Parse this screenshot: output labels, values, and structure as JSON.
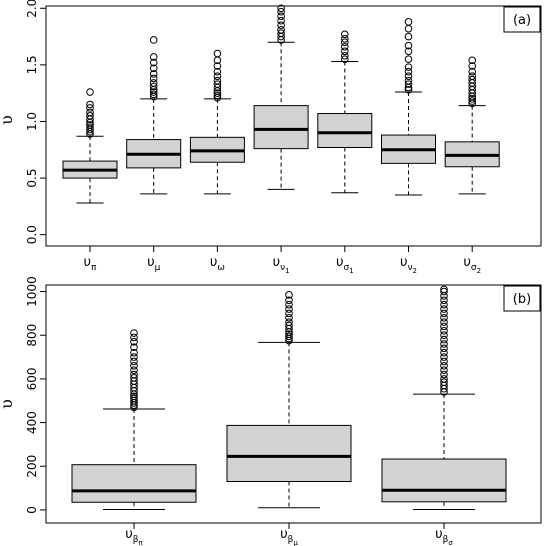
{
  "chart_data": [
    {
      "type": "boxplot",
      "panel_label": "(a)",
      "ylabel": "υ",
      "ylim": [
        0,
        2.0
      ],
      "yticks": [
        0.0,
        0.5,
        1.0,
        1.5,
        2.0
      ],
      "ytick_labels": [
        "0.0",
        "0.5",
        "1.0",
        "1.5",
        "2.0"
      ],
      "categories": [
        {
          "base": "υ",
          "sub": "π",
          "subsub": ""
        },
        {
          "base": "υ",
          "sub": "μ",
          "subsub": ""
        },
        {
          "base": "υ",
          "sub": "ω",
          "subsub": ""
        },
        {
          "base": "υ",
          "sub": "ν",
          "subsub": "1"
        },
        {
          "base": "υ",
          "sub": "σ",
          "subsub": "1"
        },
        {
          "base": "υ",
          "sub": "ν",
          "subsub": "2"
        },
        {
          "base": "υ",
          "sub": "σ",
          "subsub": "2"
        }
      ],
      "boxes": [
        {
          "min": 0.28,
          "q1": 0.5,
          "median": 0.57,
          "q3": 0.65,
          "max": 0.87,
          "outliers": [
            0.89,
            0.91,
            0.93,
            0.95,
            0.97,
            0.99,
            1.02,
            1.05,
            1.08,
            1.12,
            1.15,
            1.26
          ]
        },
        {
          "min": 0.36,
          "q1": 0.59,
          "median": 0.71,
          "q3": 0.84,
          "max": 1.2,
          "outliers": [
            1.22,
            1.24,
            1.26,
            1.28,
            1.31,
            1.34,
            1.38,
            1.42,
            1.47,
            1.52,
            1.57,
            1.72
          ]
        },
        {
          "min": 0.36,
          "q1": 0.64,
          "median": 0.74,
          "q3": 0.86,
          "max": 1.2,
          "outliers": [
            1.21,
            1.23,
            1.25,
            1.27,
            1.3,
            1.33,
            1.36,
            1.4,
            1.44,
            1.49,
            1.54,
            1.6
          ]
        },
        {
          "min": 0.4,
          "q1": 0.76,
          "median": 0.93,
          "q3": 1.14,
          "max": 1.7,
          "outliers": [
            1.72,
            1.75,
            1.78,
            1.81,
            1.85,
            1.89,
            1.93,
            1.97,
            2.0
          ]
        },
        {
          "min": 0.37,
          "q1": 0.77,
          "median": 0.9,
          "q3": 1.07,
          "max": 1.53,
          "outliers": [
            1.55,
            1.58,
            1.62,
            1.66,
            1.7,
            1.73,
            1.77
          ]
        },
        {
          "min": 0.35,
          "q1": 0.63,
          "median": 0.75,
          "q3": 0.88,
          "max": 1.26,
          "outliers": [
            1.28,
            1.3,
            1.33,
            1.36,
            1.4,
            1.44,
            1.48,
            1.55,
            1.62,
            1.67,
            1.75,
            1.82,
            1.88
          ]
        },
        {
          "min": 0.36,
          "q1": 0.6,
          "median": 0.7,
          "q3": 0.82,
          "max": 1.14,
          "outliers": [
            1.16,
            1.18,
            1.2,
            1.22,
            1.25,
            1.28,
            1.31,
            1.34,
            1.37,
            1.4,
            1.44,
            1.49,
            1.54
          ]
        }
      ]
    },
    {
      "type": "boxplot",
      "panel_label": "(b)",
      "ylabel": "υ",
      "ylim": [
        0,
        1000
      ],
      "yticks": [
        0,
        200,
        400,
        600,
        800,
        1000
      ],
      "ytick_labels": [
        "0",
        "200",
        "400",
        "600",
        "800",
        "1000"
      ],
      "categories": [
        {
          "base": "υ",
          "sub": "β",
          "subsub": "π"
        },
        {
          "base": "υ",
          "sub": "β",
          "subsub": "μ"
        },
        {
          "base": "υ",
          "sub": "β",
          "subsub": "σ"
        }
      ],
      "boxes": [
        {
          "min": 2,
          "q1": 35,
          "median": 87,
          "q3": 207,
          "max": 462,
          "outliers": [
            470,
            480,
            490,
            500,
            510,
            520,
            530,
            545,
            560,
            575,
            590,
            605,
            620,
            640,
            660,
            680,
            700,
            720,
            745,
            770,
            790,
            810
          ]
        },
        {
          "min": 10,
          "q1": 130,
          "median": 245,
          "q3": 387,
          "max": 767,
          "outliers": [
            775,
            785,
            795,
            805,
            815,
            830,
            845,
            860,
            880,
            900,
            920,
            940,
            960,
            985
          ]
        },
        {
          "min": 2,
          "q1": 37,
          "median": 90,
          "q3": 233,
          "max": 530,
          "outliers": [
            540,
            555,
            570,
            585,
            600,
            620,
            640,
            660,
            680,
            700,
            720,
            740,
            760,
            780,
            800,
            820,
            840,
            860,
            880,
            900,
            920,
            940,
            960,
            980,
            1000,
            1010
          ]
        }
      ]
    }
  ]
}
